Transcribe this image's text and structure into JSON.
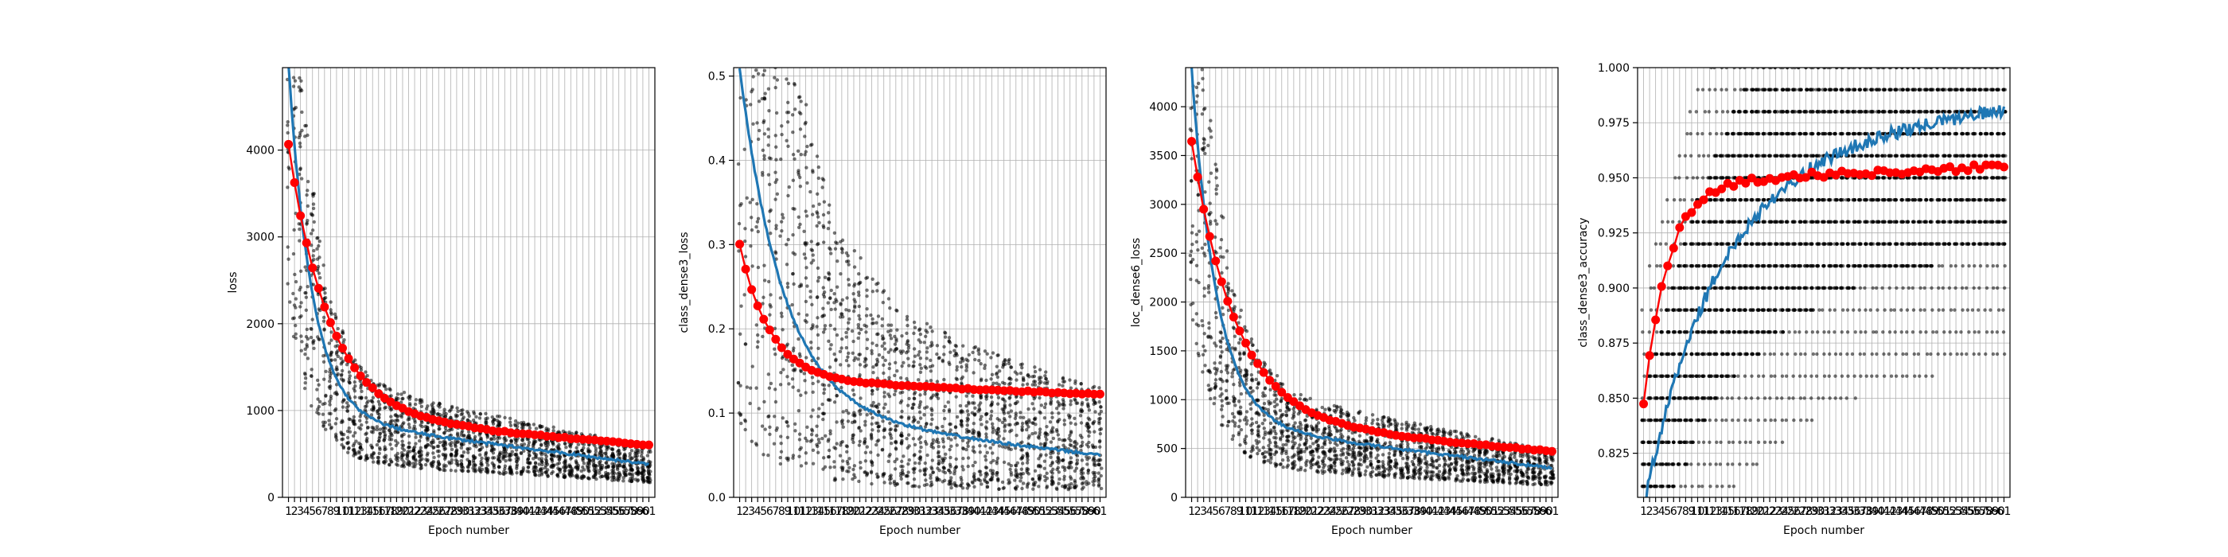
{
  "figure": {
    "colors": {
      "train": "#1f77b4",
      "validation": "#ff0000",
      "scatter": "#000000"
    }
  },
  "chart_data": [
    {
      "type": "scatter",
      "series_types": [
        "scatter",
        "line",
        "line"
      ],
      "xlabel": "Epoch number",
      "ylabel": "loss",
      "xlim": [
        0,
        62
      ],
      "ylim": [
        0,
        4950
      ],
      "yticks": [
        0,
        1000,
        2000,
        3000,
        4000
      ],
      "ytick_labels": [
        "0",
        "1000",
        "2000",
        "3000",
        "4000"
      ],
      "x_categories_count": 61,
      "curves": {
        "train": {
          "start": 5000,
          "end": 380,
          "rate": 0.26,
          "mid": 920,
          "mid_x": 20
        },
        "validation": {
          "start": 4060,
          "end": 600,
          "rate": 0.15,
          "mid": 950,
          "mid_x": 20
        }
      },
      "validation_points_epochs": "1-61",
      "scatter_spread": {
        "low": 0.45,
        "high": 1.55
      }
    },
    {
      "type": "scatter",
      "series_types": [
        "scatter",
        "line",
        "line"
      ],
      "xlabel": "Epoch number",
      "ylabel": "class_dense3_loss",
      "xlim": [
        0,
        62
      ],
      "ylim": [
        0,
        0.51
      ],
      "yticks": [
        0.0,
        0.1,
        0.2,
        0.3,
        0.4,
        0.5
      ],
      "ytick_labels": [
        "0.0",
        "0.1",
        "0.2",
        "0.3",
        "0.4",
        "0.5"
      ],
      "x_categories_count": 61,
      "curves": {
        "train": {
          "start": 0.51,
          "end": 0.05,
          "rate": 0.14,
          "mid": 0.1,
          "mid_x": 20
        },
        "validation": {
          "start": 0.3,
          "end": 0.122,
          "rate": 0.2,
          "mid": 0.14,
          "mid_x": 20
        }
      },
      "scatter_spread": {
        "low": 0.15,
        "high": 2.6
      }
    },
    {
      "type": "scatter",
      "series_types": [
        "scatter",
        "line",
        "line"
      ],
      "xlabel": "Epoch number",
      "ylabel": "loc_dense6_loss",
      "xlim": [
        0,
        62
      ],
      "ylim": [
        0,
        4400
      ],
      "yticks": [
        0,
        500,
        1000,
        1500,
        2000,
        2500,
        3000,
        3500,
        4000
      ],
      "ytick_labels": [
        "0",
        "500",
        "1000",
        "1500",
        "2000",
        "2500",
        "3000",
        "3500",
        "4000"
      ],
      "x_categories_count": 61,
      "curves": {
        "train": {
          "start": 4400,
          "end": 300,
          "rate": 0.24,
          "mid": 760,
          "mid_x": 20
        },
        "validation": {
          "start": 3650,
          "end": 470,
          "rate": 0.14,
          "mid": 800,
          "mid_x": 20
        }
      },
      "scatter_spread": {
        "low": 0.4,
        "high": 1.6
      }
    },
    {
      "type": "scatter",
      "series_types": [
        "scatter",
        "line",
        "line"
      ],
      "xlabel": "Epoch number",
      "ylabel": "class_dense3_accuracy",
      "xlim": [
        0,
        62
      ],
      "ylim": [
        0.805,
        1.0
      ],
      "yticks": [
        0.825,
        0.85,
        0.875,
        0.9,
        0.925,
        0.95,
        0.975,
        1.0
      ],
      "ytick_labels": [
        "0.825",
        "0.850",
        "0.875",
        "0.900",
        "0.925",
        "0.950",
        "0.975",
        "1.000"
      ],
      "x_categories_count": 61,
      "curves": {
        "train": {
          "start": 0.8,
          "end": 0.982,
          "rate": 0.085,
          "mid": 0.96,
          "mid_x": 20
        },
        "validation": {
          "start": 0.847,
          "end": 0.955,
          "rate": 0.25,
          "mid": 0.948,
          "mid_x": 20
        }
      },
      "scatter_quantized_step": 0.01,
      "scatter_range_rows": [
        0.81,
        1.0
      ]
    }
  ]
}
